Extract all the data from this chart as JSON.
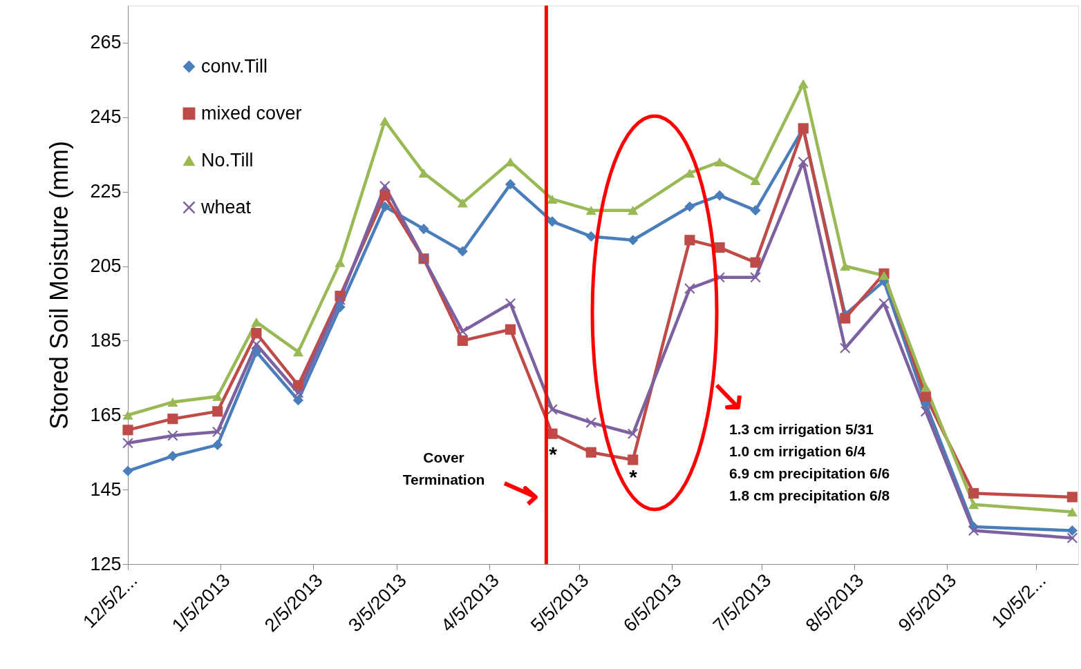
{
  "chart_data": {
    "type": "line",
    "ylabel": "Stored Soil Moisture (mm)",
    "x": [
      "2012-12-05",
      "2012-12-20",
      "2013-01-04",
      "2013-01-17",
      "2013-01-31",
      "2013-02-14",
      "2013-03-01",
      "2013-03-14",
      "2013-03-27",
      "2013-04-12",
      "2013-04-26",
      "2013-05-09",
      "2013-05-23",
      "2013-06-11",
      "2013-06-21",
      "2013-07-03",
      "2013-07-19",
      "2013-08-02",
      "2013-08-15",
      "2013-08-29",
      "2013-09-14",
      "2013-10-17"
    ],
    "series": [
      {
        "name": "conv.Till",
        "color": "#4a7ebb",
        "marker": "diamond",
        "values": [
          150,
          154,
          157,
          182,
          169,
          194,
          221,
          215,
          209,
          227,
          217,
          213,
          212,
          221,
          224,
          220,
          242,
          192,
          201,
          168,
          135,
          134
        ]
      },
      {
        "name": "mixed cover",
        "color": "#be4b48",
        "marker": "square",
        "values": [
          161,
          164,
          166,
          187,
          173,
          197,
          224,
          207,
          185,
          188,
          160,
          155,
          153,
          212,
          210,
          206,
          242,
          191,
          203,
          170,
          144,
          143
        ]
      },
      {
        "name": "No.Till",
        "color": "#98b954",
        "marker": "triangle",
        "values": [
          165,
          168.5,
          170,
          190,
          182,
          206,
          244,
          230,
          222,
          233,
          223,
          220,
          220,
          230,
          233,
          228,
          254,
          205,
          202.5,
          172.5,
          141,
          139
        ]
      },
      {
        "name": "wheat",
        "color": "#7d60a0",
        "marker": "cross",
        "values": [
          157.5,
          159.5,
          160.5,
          184,
          171,
          196,
          226.5,
          207,
          187.5,
          195,
          166.5,
          163,
          160,
          199,
          202,
          202,
          233,
          183,
          195,
          166,
          134,
          132
        ]
      }
    ],
    "xlim": [
      "2012-12-05",
      "2013-10-19"
    ],
    "xticks": [
      {
        "value": "2012-12-05",
        "label": "12/5/2..."
      },
      {
        "value": "2013-01-05",
        "label": "1/5/2013"
      },
      {
        "value": "2013-02-05",
        "label": "2/5/2013"
      },
      {
        "value": "2013-03-05",
        "label": "3/5/2013"
      },
      {
        "value": "2013-04-05",
        "label": "4/5/2013"
      },
      {
        "value": "2013-05-05",
        "label": "5/5/2013"
      },
      {
        "value": "2013-06-05",
        "label": "6/5/2013"
      },
      {
        "value": "2013-07-05",
        "label": "7/5/2013"
      },
      {
        "value": "2013-08-05",
        "label": "8/5/2013"
      },
      {
        "value": "2013-09-05",
        "label": "9/5/2013"
      },
      {
        "value": "2013-10-05",
        "label": "10/5/2..."
      }
    ],
    "ylim": [
      125,
      275
    ],
    "yticks": [
      125,
      145,
      165,
      185,
      205,
      225,
      245,
      265
    ],
    "grid": false,
    "legend": "top left",
    "line_style": "solid",
    "ref_lines": [
      {
        "axis": "x",
        "value": "2013-04-24",
        "color": "#ff0000"
      }
    ],
    "annotations": [
      "Cover Termination",
      "1.3 cm irrigation 5/31\n1.0 cm irrigation 6/4\n6.9 cm precipitation 6/6\n1.8 cm precipitation 6/8",
      "*",
      "*"
    ]
  }
}
